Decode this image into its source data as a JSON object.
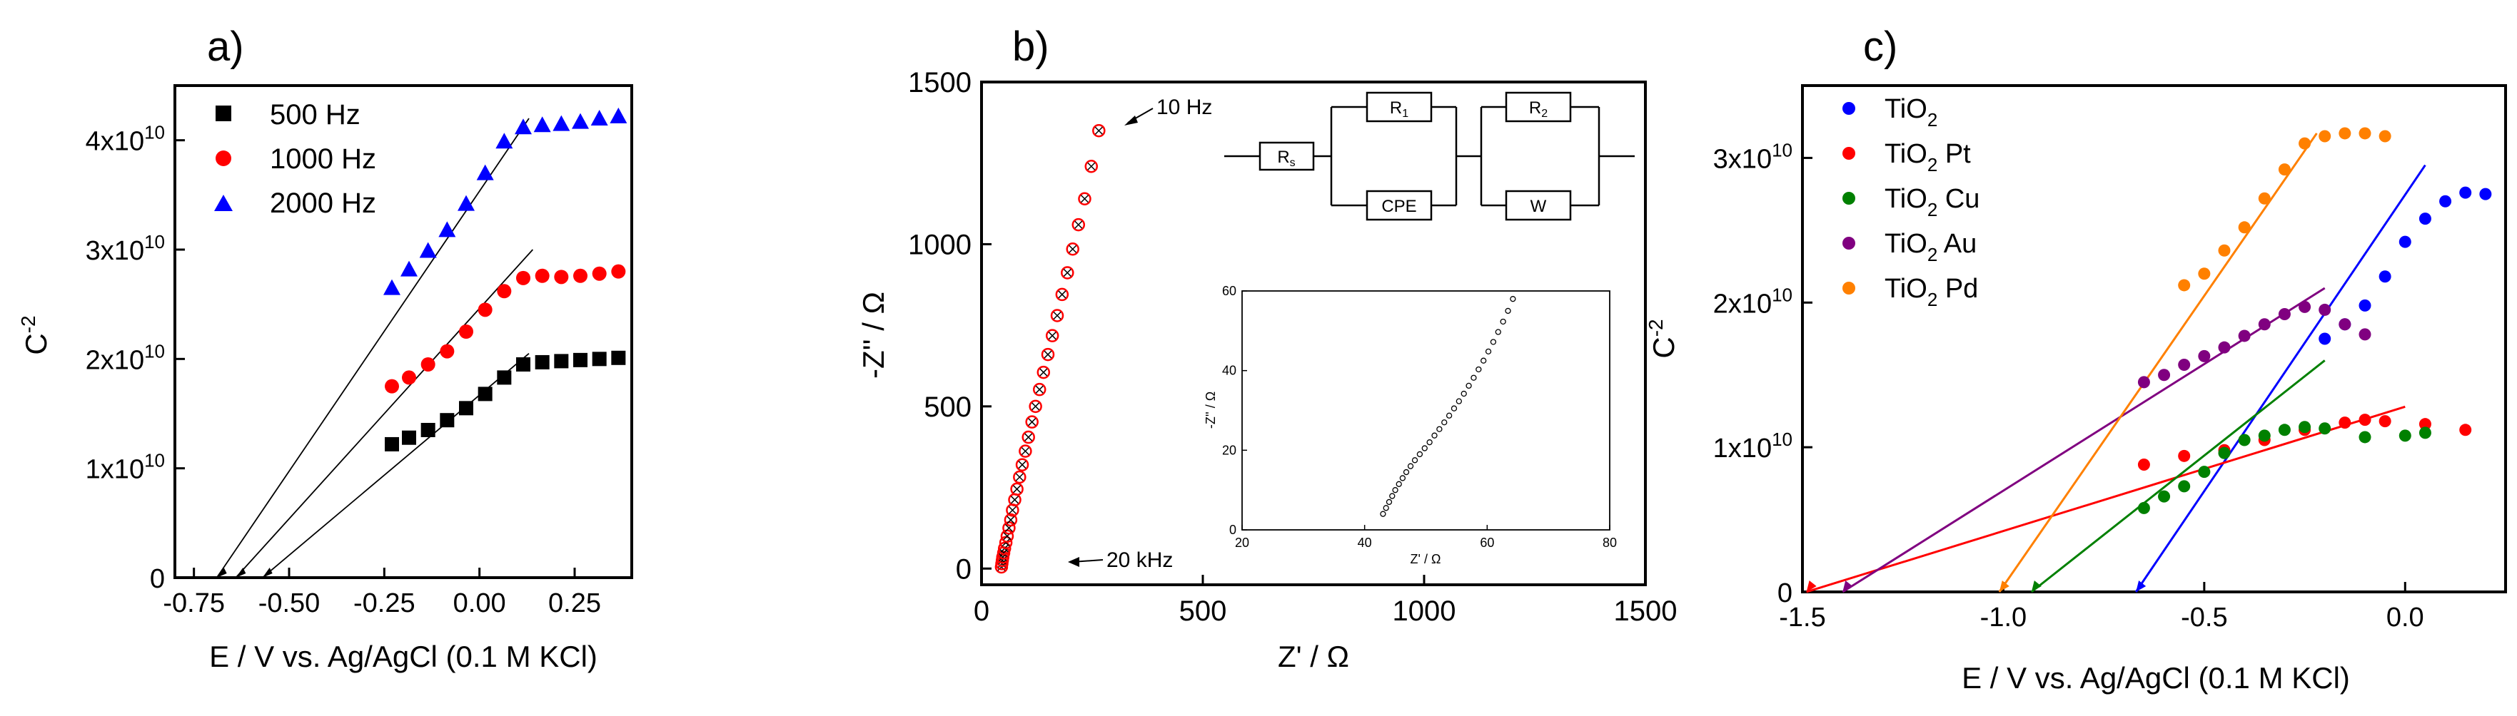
{
  "figure": {
    "panels": [
      "a)",
      "b)",
      "c)"
    ]
  },
  "chart_data": [
    {
      "panel": "a)",
      "type": "scatter",
      "title": "",
      "xlabel": "E / V vs. Ag/AgCl (0.1 M KCl)",
      "ylabel": "C⁻²",
      "ylabel_base": "C",
      "ylabel_sup": "-2",
      "xlim": [
        -0.8,
        0.4
      ],
      "ylim": [
        0,
        45000000000
      ],
      "xticks": [
        -0.75,
        -0.5,
        -0.25,
        0.0,
        0.25
      ],
      "xtick_labels": [
        "-0.75",
        "-0.50",
        "-0.25",
        "0.00",
        "0.25"
      ],
      "yticks": [
        0,
        10000000000,
        20000000000,
        30000000000,
        40000000000
      ],
      "ytick_labels": [
        {
          "base": "0",
          "exp": ""
        },
        {
          "base": "1x10",
          "exp": "10"
        },
        {
          "base": "2x10",
          "exp": "10"
        },
        {
          "base": "3x10",
          "exp": "10"
        },
        {
          "base": "4x10",
          "exp": "10"
        }
      ],
      "legend_position": "top-left",
      "x": [
        -0.23,
        -0.185,
        -0.135,
        -0.085,
        -0.035,
        0.015,
        0.065,
        0.115,
        0.165,
        0.215,
        0.265,
        0.315,
        0.365
      ],
      "series": [
        {
          "name": "500 Hz",
          "marker": "square",
          "color": "#000000",
          "values": [
            12200000000.0,
            12800000000.0,
            13500000000.0,
            14400000000.0,
            15500000000.0,
            16800000000.0,
            18300000000.0,
            19500000000.0,
            19700000000.0,
            19800000000.0,
            19900000000.0,
            20000000000.0,
            20100000000.0
          ]
        },
        {
          "name": "1000 Hz",
          "marker": "circle",
          "color": "#ff0000",
          "values": [
            17500000000.0,
            18300000000.0,
            19500000000.0,
            20700000000.0,
            22500000000.0,
            24500000000.0,
            26200000000.0,
            27400000000.0,
            27600000000.0,
            27500000000.0,
            27600000000.0,
            27800000000.0,
            28000000000.0
          ]
        },
        {
          "name": "2000 Hz",
          "marker": "triangle",
          "color": "#0000ff",
          "values": [
            26500000000.0,
            28200000000.0,
            29900000000.0,
            31800000000.0,
            34200000000.0,
            37000000000.0,
            39900000000.0,
            41200000000.0,
            41400000000.0,
            41500000000.0,
            41700000000.0,
            42000000000.0,
            42200000000.0
          ]
        }
      ],
      "fit_lines": [
        {
          "x": [
            -0.69,
            0.13
          ],
          "y": [
            0,
            42000000000.0
          ]
        },
        {
          "x": [
            -0.64,
            0.14
          ],
          "y": [
            0,
            30000000000.0
          ]
        },
        {
          "x": [
            -0.57,
            0.13
          ],
          "y": [
            0,
            20500000000.0
          ]
        }
      ]
    },
    {
      "panel": "b)",
      "type": "scatter",
      "title": "",
      "xlabel": "Z' / Ω",
      "ylabel": "-Z'' / Ω",
      "xlim": [
        0,
        1500
      ],
      "ylim": [
        -50,
        1500
      ],
      "xticks": [
        0,
        500,
        1000,
        1500
      ],
      "xtick_labels": [
        "0",
        "500",
        "1000",
        "1500"
      ],
      "yticks": [
        0,
        500,
        1000,
        1500
      ],
      "ytick_labels": [
        "0",
        "500",
        "1000",
        "1500"
      ],
      "annotations": [
        {
          "text": "10 Hz",
          "x": 265,
          "y": 1350
        },
        {
          "text": "20 kHz",
          "x": 48,
          "y": 5
        }
      ],
      "x": [
        45,
        46,
        47,
        48,
        50,
        52,
        55,
        58,
        62,
        66,
        70,
        75,
        80,
        86,
        92,
        99,
        106,
        114,
        122,
        131,
        140,
        150,
        160,
        171,
        182,
        194,
        206,
        219,
        233,
        248,
        265
      ],
      "series": [
        {
          "name": "Nyquist",
          "marker": "circle-x",
          "color": "#ff0000",
          "values": [
            5,
            15,
            25,
            35,
            48,
            62,
            80,
            100,
            125,
            150,
            180,
            212,
            245,
            282,
            320,
            362,
            405,
            452,
            500,
            552,
            605,
            660,
            718,
            780,
            845,
            912,
            985,
            1060,
            1140,
            1240,
            1350
          ]
        }
      ],
      "circuit": {
        "labels": [
          "R_s",
          "R_1",
          "CPE",
          "R_2",
          "W"
        ]
      },
      "inset": {
        "type": "scatter",
        "xlabel": "Z' / Ω",
        "ylabel": "-Z'' / Ω",
        "xlim": [
          20,
          80
        ],
        "ylim": [
          0,
          60
        ],
        "xticks": [
          20,
          40,
          60,
          80
        ],
        "xtick_labels": [
          "20",
          "40",
          "60",
          "80"
        ],
        "yticks": [
          0,
          20,
          40,
          60
        ],
        "ytick_labels": [
          "0",
          "20",
          "40",
          "60"
        ],
        "x": [
          43,
          43.5,
          44,
          44.5,
          45,
          45.6,
          46.2,
          46.8,
          47.5,
          48.2,
          49,
          49.8,
          50.6,
          51.4,
          52.2,
          53,
          53.8,
          54.6,
          55.4,
          56.2,
          57,
          57.8,
          58.6,
          59.4,
          60.2,
          61,
          61.8,
          62.6,
          63.4,
          64.2
        ],
        "values": [
          4,
          5.5,
          7,
          8.5,
          10,
          11.5,
          13,
          14.5,
          16,
          17.5,
          19,
          20.5,
          22,
          23.7,
          25.3,
          27,
          28.7,
          30.5,
          32.3,
          34.2,
          36.2,
          38.2,
          40.3,
          42.5,
          44.8,
          47.2,
          49.7,
          52.3,
          55,
          58
        ]
      }
    },
    {
      "panel": "c)",
      "type": "scatter",
      "title": "",
      "xlabel": "E / V vs. Ag/AgCl (0.1 M KCl)",
      "ylabel": "C⁻²",
      "ylabel_base": "C",
      "ylabel_sup": "-2",
      "xlim": [
        -1.5,
        0.25
      ],
      "ylim": [
        0,
        35000000000
      ],
      "xticks": [
        -1.5,
        -1.0,
        -0.5,
        0.0
      ],
      "xtick_labels": [
        "-1.5",
        "-1.0",
        "-0.5",
        "0.0"
      ],
      "yticks": [
        0,
        10000000000,
        20000000000,
        30000000000
      ],
      "ytick_labels": [
        {
          "base": "0",
          "exp": ""
        },
        {
          "base": "1x10",
          "exp": "10"
        },
        {
          "base": "2x10",
          "exp": "10"
        },
        {
          "base": "3x10",
          "exp": "10"
        }
      ],
      "legend_position": "top-left",
      "series": [
        {
          "name": "TiO",
          "sub": "2",
          "suffix": "",
          "color": "#0000ff",
          "x": [
            -0.2,
            -0.15,
            -0.1,
            -0.05,
            0.0,
            0.05,
            0.1,
            0.15,
            0.2
          ],
          "values": [
            17500000000.0,
            18500000000.0,
            19800000000.0,
            21800000000.0,
            24200000000.0,
            25800000000.0,
            27000000000.0,
            27600000000.0,
            27500000000.0
          ]
        },
        {
          "name": "TiO",
          "sub": "2",
          "suffix": " Pt",
          "color": "#ff0000",
          "x": [
            -0.65,
            -0.55,
            -0.45,
            -0.35,
            -0.25,
            -0.15,
            -0.1,
            -0.05,
            0.05,
            0.15
          ],
          "values": [
            8800000000.0,
            9400000000.0,
            9800000000.0,
            10500000000.0,
            11200000000.0,
            11700000000.0,
            11900000000.0,
            11800000000.0,
            11600000000.0,
            11200000000.0
          ]
        },
        {
          "name": "TiO",
          "sub": "2",
          "suffix": " Cu",
          "color": "#008000",
          "x": [
            -0.65,
            -0.6,
            -0.55,
            -0.5,
            -0.45,
            -0.4,
            -0.35,
            -0.3,
            -0.25,
            -0.2,
            -0.1,
            0.0,
            0.05
          ],
          "values": [
            5800000000.0,
            6600000000.0,
            7300000000.0,
            8300000000.0,
            9600000000.0,
            10500000000.0,
            10800000000.0,
            11200000000.0,
            11400000000.0,
            11300000000.0,
            10700000000.0,
            10800000000.0,
            11000000000.0
          ]
        },
        {
          "name": "TiO",
          "sub": "2",
          "suffix": " Au",
          "color": "#800080",
          "x": [
            -0.65,
            -0.6,
            -0.55,
            -0.5,
            -0.45,
            -0.4,
            -0.35,
            -0.3,
            -0.25,
            -0.2,
            -0.15,
            -0.1
          ],
          "values": [
            14500000000.0,
            15000000000.0,
            15700000000.0,
            16300000000.0,
            16900000000.0,
            17700000000.0,
            18500000000.0,
            19200000000.0,
            19700000000.0,
            19500000000.0,
            18500000000.0,
            17800000000.0
          ]
        },
        {
          "name": "TiO",
          "sub": "2",
          "suffix": " Pd",
          "color": "#ff8000",
          "x": [
            -0.55,
            -0.5,
            -0.45,
            -0.4,
            -0.35,
            -0.3,
            -0.25,
            -0.2,
            -0.15,
            -0.1,
            -0.05
          ],
          "values": [
            21200000000.0,
            22000000000.0,
            23600000000.0,
            25200000000.0,
            27200000000.0,
            29200000000.0,
            31000000000.0,
            31500000000.0,
            31700000000.0,
            31700000000.0,
            31500000000.0
          ]
        }
      ],
      "fit_lines": [
        {
          "color": "#0000ff",
          "x": [
            -0.67,
            0.05
          ],
          "y": [
            0,
            29500000000.0
          ]
        },
        {
          "color": "#ff0000",
          "x": [
            -1.49,
            0.0
          ],
          "y": [
            0,
            12800000000.0
          ]
        },
        {
          "color": "#008000",
          "x": [
            -0.93,
            -0.2
          ],
          "y": [
            0,
            16000000000.0
          ]
        },
        {
          "color": "#800080",
          "x": [
            -1.4,
            -0.2
          ],
          "y": [
            0,
            21000000000.0
          ]
        },
        {
          "color": "#ff8000",
          "x": [
            -1.01,
            -0.22
          ],
          "y": [
            0,
            31700000000.0
          ]
        }
      ]
    }
  ]
}
